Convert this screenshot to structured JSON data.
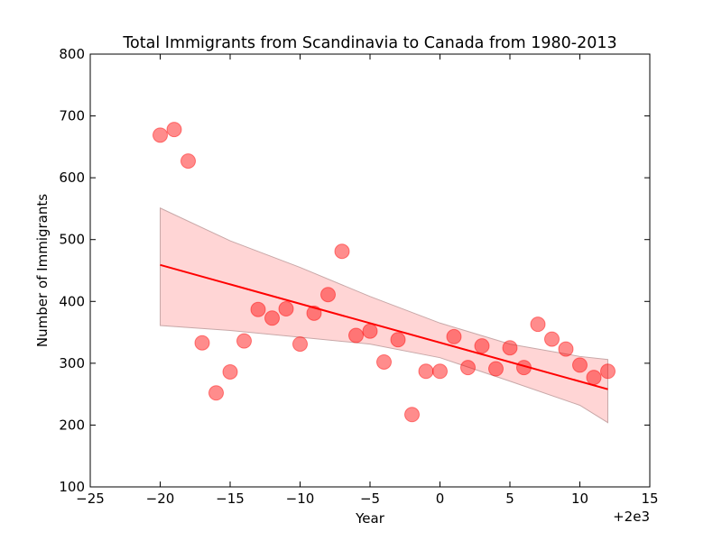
{
  "chart_data": {
    "type": "scatter",
    "title": "Total Immigrants from Scandinavia to Canada from 1980-2013",
    "xlabel": "Year",
    "ylabel": "Number of Immigrants",
    "x_offset_label": "+2e3",
    "xlim": [
      -25,
      15
    ],
    "ylim": [
      100,
      800
    ],
    "xticks": [
      -25,
      -20,
      -15,
      -10,
      -5,
      0,
      5,
      10,
      15
    ],
    "yticks": [
      100,
      200,
      300,
      400,
      500,
      600,
      700,
      800
    ],
    "grid": false,
    "colors": {
      "points": "#ff0000",
      "line": "#ff0000",
      "band": "#ffb3b3"
    },
    "points": [
      {
        "x": -20,
        "y": 669
      },
      {
        "x": -19,
        "y": 678
      },
      {
        "x": -18,
        "y": 627
      },
      {
        "x": -17,
        "y": 333
      },
      {
        "x": -16,
        "y": 252
      },
      {
        "x": -15,
        "y": 286
      },
      {
        "x": -14,
        "y": 336
      },
      {
        "x": -13,
        "y": 387
      },
      {
        "x": -12,
        "y": 373
      },
      {
        "x": -11,
        "y": 388
      },
      {
        "x": -10,
        "y": 331
      },
      {
        "x": -9,
        "y": 381
      },
      {
        "x": -8,
        "y": 411
      },
      {
        "x": -7,
        "y": 481
      },
      {
        "x": -6,
        "y": 345
      },
      {
        "x": -5,
        "y": 352
      },
      {
        "x": -4,
        "y": 302
      },
      {
        "x": -3,
        "y": 338
      },
      {
        "x": -2,
        "y": 217
      },
      {
        "x": -1,
        "y": 287
      },
      {
        "x": 0,
        "y": 287
      },
      {
        "x": 1,
        "y": 343
      },
      {
        "x": 2,
        "y": 293
      },
      {
        "x": 3,
        "y": 328
      },
      {
        "x": 4,
        "y": 291
      },
      {
        "x": 5,
        "y": 325
      },
      {
        "x": 6,
        "y": 293
      },
      {
        "x": 7,
        "y": 363
      },
      {
        "x": 8,
        "y": 339
      },
      {
        "x": 9,
        "y": 323
      },
      {
        "x": 10,
        "y": 297
      },
      {
        "x": 11,
        "y": 277
      },
      {
        "x": 12,
        "y": 287
      }
    ],
    "regression": {
      "x": [
        -20,
        12
      ],
      "y": [
        459,
        258
      ]
    },
    "confidence_band": {
      "x": [
        -20,
        -15,
        -10,
        -5,
        0,
        5,
        10,
        12
      ],
      "upper": [
        551,
        498,
        455,
        408,
        365,
        331,
        311,
        306
      ],
      "lower": [
        361,
        353,
        342,
        331,
        309,
        271,
        232,
        204
      ]
    }
  }
}
